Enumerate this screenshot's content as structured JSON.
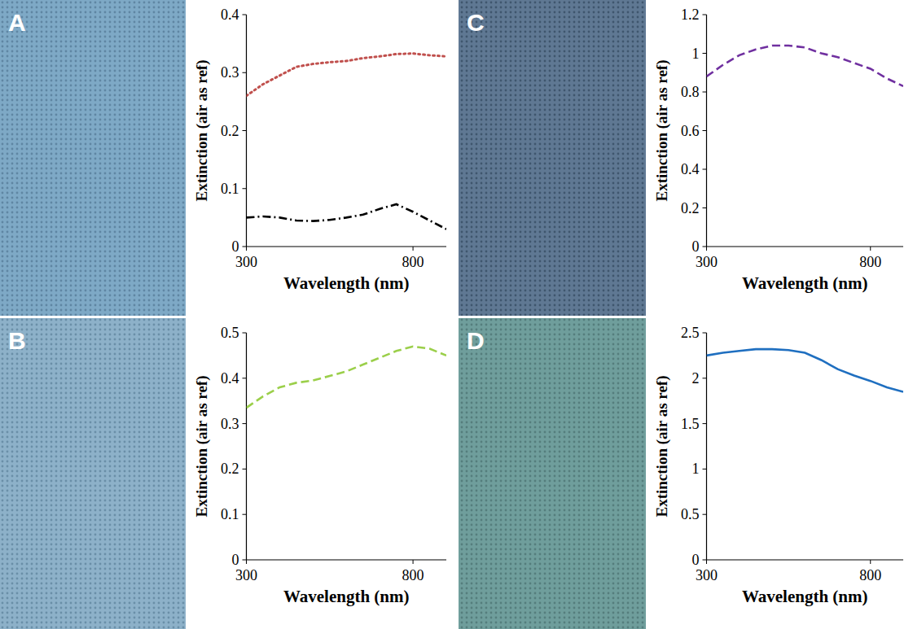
{
  "chart_data": [
    {
      "type": "line",
      "panel": "A",
      "x_label": "Wavelength (nm)",
      "y_label": "Extinction (air as ref)",
      "x": [
        300,
        350,
        400,
        450,
        500,
        550,
        600,
        650,
        700,
        750,
        800,
        850,
        900
      ],
      "xlim": [
        300,
        900
      ],
      "xticks": [
        300,
        800
      ],
      "ylim": [
        0,
        0.4
      ],
      "yticks": [
        0,
        0.1,
        0.2,
        0.3,
        0.4
      ],
      "series": [
        {
          "color": "#c0504d",
          "line_style": "dotted",
          "values": [
            0.26,
            0.28,
            0.295,
            0.31,
            0.315,
            0.318,
            0.32,
            0.325,
            0.328,
            0.332,
            0.333,
            0.33,
            0.328
          ]
        },
        {
          "color": "#000000",
          "line_style": "dashdot",
          "values": [
            0.05,
            0.052,
            0.05,
            0.045,
            0.044,
            0.046,
            0.05,
            0.055,
            0.065,
            0.073,
            0.06,
            0.045,
            0.03
          ]
        }
      ]
    },
    {
      "type": "line",
      "panel": "B",
      "x_label": "Wavelength (nm)",
      "y_label": "Extinction (air as ref)",
      "x": [
        300,
        350,
        400,
        450,
        500,
        550,
        600,
        650,
        700,
        750,
        800,
        850,
        900
      ],
      "xlim": [
        300,
        900
      ],
      "xticks": [
        300,
        800
      ],
      "ylim": [
        0,
        0.5
      ],
      "yticks": [
        0,
        0.1,
        0.2,
        0.3,
        0.4,
        0.5
      ],
      "series": [
        {
          "color": "#9bcf4a",
          "line_style": "dashed",
          "values": [
            0.335,
            0.36,
            0.38,
            0.39,
            0.395,
            0.405,
            0.415,
            0.43,
            0.445,
            0.46,
            0.47,
            0.465,
            0.45
          ]
        }
      ]
    },
    {
      "type": "line",
      "panel": "C",
      "x_label": "Wavelength (nm)",
      "y_label": "Extinction (air as ref)",
      "x": [
        300,
        350,
        400,
        450,
        500,
        550,
        600,
        650,
        700,
        750,
        800,
        850,
        900
      ],
      "xlim": [
        300,
        900
      ],
      "xticks": [
        300,
        800
      ],
      "ylim": [
        0,
        1.2
      ],
      "yticks": [
        0,
        0.2,
        0.4,
        0.6,
        0.8,
        1,
        1.2
      ],
      "series": [
        {
          "color": "#7030a0",
          "line_style": "dashed",
          "values": [
            0.88,
            0.94,
            0.99,
            1.02,
            1.04,
            1.04,
            1.03,
            1.0,
            0.98,
            0.95,
            0.92,
            0.87,
            0.83
          ]
        }
      ]
    },
    {
      "type": "line",
      "panel": "D",
      "x_label": "Wavelength (nm)",
      "y_label": "Extinction (air as ref)",
      "x": [
        300,
        350,
        400,
        450,
        500,
        550,
        600,
        650,
        700,
        750,
        800,
        850,
        900
      ],
      "xlim": [
        300,
        900
      ],
      "xticks": [
        300,
        800
      ],
      "ylim": [
        0,
        2.5
      ],
      "yticks": [
        0,
        0.5,
        1,
        1.5,
        2,
        2.5
      ],
      "series": [
        {
          "color": "#1f6fc0",
          "line_style": "solid",
          "values": [
            2.25,
            2.28,
            2.3,
            2.32,
            2.32,
            2.31,
            2.28,
            2.2,
            2.1,
            2.03,
            1.97,
            1.9,
            1.85
          ]
        }
      ]
    }
  ]
}
